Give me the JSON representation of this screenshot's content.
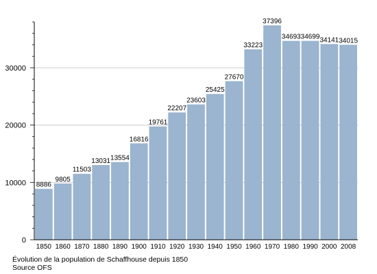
{
  "chart_data": {
    "type": "bar",
    "categories": [
      "1850",
      "1860",
      "1870",
      "1880",
      "1890",
      "1900",
      "1910",
      "1920",
      "1930",
      "1940",
      "1950",
      "1960",
      "1970",
      "1980",
      "1990",
      "2000",
      "2008"
    ],
    "values": [
      8886,
      9805,
      11503,
      13031,
      13554,
      16816,
      19761,
      22207,
      23603,
      25425,
      27670,
      33223,
      37396,
      34693,
      34699,
      34141,
      34015
    ],
    "ylim": [
      0,
      38000
    ],
    "yticks": [
      0,
      10000,
      20000,
      30000
    ],
    "grid": true,
    "bar_color": "#9bb4cf"
  },
  "caption": {
    "line1": "Évolution de la population de Schaffhouse depuis 1850",
    "line2": "Source OFS"
  }
}
